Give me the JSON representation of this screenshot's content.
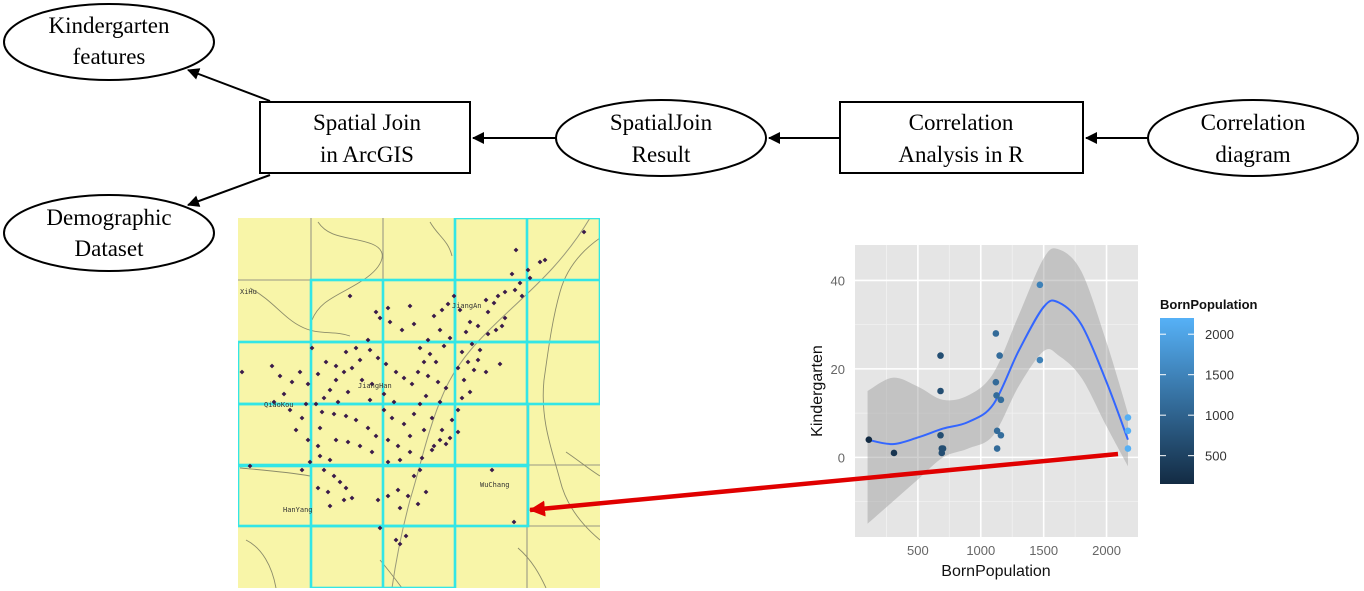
{
  "nodes": {
    "kindergarten_features": [
      "Kindergarten",
      "features"
    ],
    "demographic_dataset": [
      "Demographic",
      "Dataset"
    ],
    "spatial_join_arcgis": [
      "Spatial Join",
      "in ArcGIS"
    ],
    "spatialjoin_result": [
      "SpatialJoin",
      "Result"
    ],
    "correlation_analysis": [
      "Correlation",
      "Analysis in R"
    ],
    "correlation_diagram": [
      "Correlation",
      "diagram"
    ]
  },
  "map": {
    "labels": {
      "xihu": "XiHu",
      "jiangan": "JiangAn",
      "jianghan": "JiangHan",
      "qiaokou": "QiaoKou",
      "hanyang": "HanYang",
      "wuchang": "WuChang"
    },
    "colors": {
      "background": "#f8f5a8",
      "grid_highlight": "#33e6e6",
      "points": "#3a1a4a"
    }
  },
  "chart_data": {
    "type": "scatter",
    "xlabel": "BornPopulation",
    "ylabel": "Kindergarten",
    "xlim": [
      0,
      2250
    ],
    "ylim": [
      -18,
      48
    ],
    "x_ticks": [
      500,
      1000,
      1500,
      2000
    ],
    "y_ticks": [
      0,
      20,
      40
    ],
    "points": [
      {
        "x": 110,
        "y": 4
      },
      {
        "x": 310,
        "y": 1
      },
      {
        "x": 680,
        "y": 23
      },
      {
        "x": 680,
        "y": 15
      },
      {
        "x": 680,
        "y": 5
      },
      {
        "x": 690,
        "y": 2
      },
      {
        "x": 690,
        "y": 1
      },
      {
        "x": 700,
        "y": 2
      },
      {
        "x": 1120,
        "y": 28
      },
      {
        "x": 1120,
        "y": 17
      },
      {
        "x": 1125,
        "y": 14
      },
      {
        "x": 1130,
        "y": 6
      },
      {
        "x": 1130,
        "y": 2
      },
      {
        "x": 1150,
        "y": 23
      },
      {
        "x": 1160,
        "y": 13
      },
      {
        "x": 1160,
        "y": 5
      },
      {
        "x": 1470,
        "y": 39
      },
      {
        "x": 1470,
        "y": 22
      },
      {
        "x": 2170,
        "y": 9
      },
      {
        "x": 2170,
        "y": 6
      },
      {
        "x": 2170,
        "y": 2
      }
    ],
    "smooth_line": [
      {
        "x": 100,
        "y": 4
      },
      {
        "x": 300,
        "y": 3
      },
      {
        "x": 500,
        "y": 4.5
      },
      {
        "x": 700,
        "y": 6.5
      },
      {
        "x": 900,
        "y": 8
      },
      {
        "x": 1100,
        "y": 12
      },
      {
        "x": 1300,
        "y": 24
      },
      {
        "x": 1500,
        "y": 34
      },
      {
        "x": 1620,
        "y": 35
      },
      {
        "x": 1800,
        "y": 30
      },
      {
        "x": 2000,
        "y": 17
      },
      {
        "x": 2170,
        "y": 4
      }
    ],
    "ci_upper": [
      {
        "x": 100,
        "y": 15
      },
      {
        "x": 300,
        "y": 18
      },
      {
        "x": 500,
        "y": 16
      },
      {
        "x": 700,
        "y": 13
      },
      {
        "x": 900,
        "y": 14
      },
      {
        "x": 1100,
        "y": 19
      },
      {
        "x": 1300,
        "y": 32
      },
      {
        "x": 1500,
        "y": 45
      },
      {
        "x": 1620,
        "y": 47
      },
      {
        "x": 1800,
        "y": 42
      },
      {
        "x": 2000,
        "y": 26
      },
      {
        "x": 2170,
        "y": 10
      }
    ],
    "ci_lower": [
      {
        "x": 100,
        "y": -15
      },
      {
        "x": 300,
        "y": -10
      },
      {
        "x": 500,
        "y": -5
      },
      {
        "x": 700,
        "y": 0
      },
      {
        "x": 900,
        "y": 2
      },
      {
        "x": 1100,
        "y": 5
      },
      {
        "x": 1300,
        "y": 16
      },
      {
        "x": 1500,
        "y": 24
      },
      {
        "x": 1620,
        "y": 23
      },
      {
        "x": 1800,
        "y": 18
      },
      {
        "x": 2000,
        "y": 7
      },
      {
        "x": 2170,
        "y": -2
      }
    ],
    "legend": {
      "title": "BornPopulation",
      "ticks": [
        500,
        1000,
        1500,
        2000
      ],
      "color_low": "#132b43",
      "color_high": "#56b1f7",
      "range": [
        150,
        2200
      ]
    },
    "colors": {
      "panel": "#e5e5e5",
      "grid": "#ffffff",
      "line": "#3366ff",
      "ribbon": "#999999"
    }
  },
  "annotation_arrow_color": "#e00000"
}
